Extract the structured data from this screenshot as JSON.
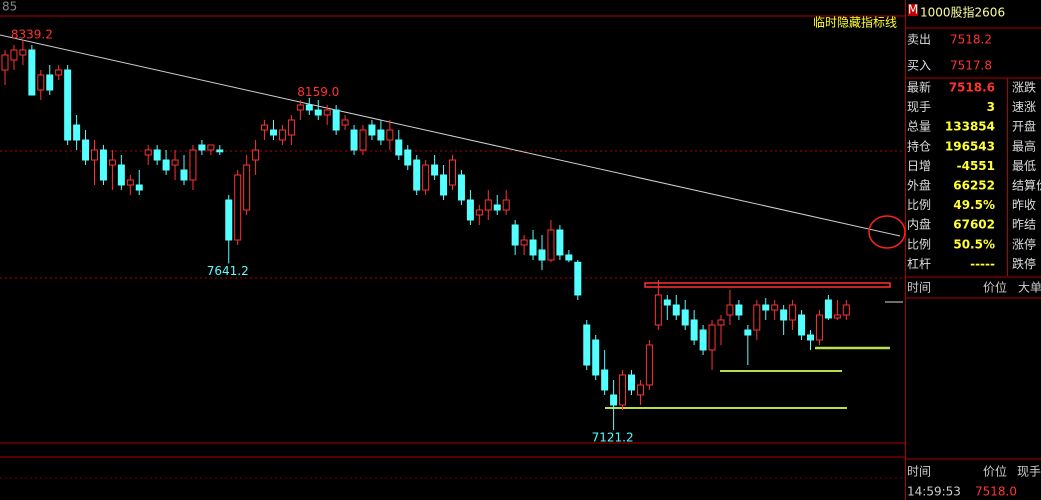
{
  "chart_data": {
    "type": "candlestick",
    "corner_label": "85",
    "note": "临时隐藏指标线",
    "annotations": [
      "8339.2",
      "8159.0",
      "7641.2",
      "7121.2"
    ],
    "up_color": "#ff3232",
    "down_color": "#54ffff",
    "candles": [
      [
        8245.5,
        8308,
        8198.7,
        8292.4
      ],
      [
        8276.7,
        8323.6,
        8245.5,
        8308
      ],
      [
        8292.4,
        8339.2,
        8261.1,
        8308
      ],
      [
        8308,
        8323.6,
        8167.4,
        8167.4
      ],
      [
        8183.1,
        8245.5,
        8151.8,
        8229.9
      ],
      [
        8229.9,
        8261.1,
        8167.4,
        8183.1
      ],
      [
        8229.9,
        8261.1,
        8214.3,
        8245.5
      ],
      [
        8245.5,
        8261.1,
        8011.3,
        8026.9
      ],
      [
        8073.7,
        8105,
        7995.7,
        8026.9
      ],
      [
        8026.9,
        8058.1,
        7948.8,
        7964.4
      ],
      [
        7964.4,
        8026.9,
        7886.4,
        7995.7
      ],
      [
        7995.7,
        8011.3,
        7886.4,
        7902
      ],
      [
        7948.8,
        7995.7,
        7870.7,
        7964.4
      ],
      [
        7948.8,
        7980.1,
        7870.7,
        7886.4
      ],
      [
        7886.4,
        7917.6,
        7855.1,
        7902
      ],
      [
        7886.4,
        7933.2,
        7855.1,
        7870.7
      ],
      [
        7980.1,
        8011.3,
        7948.8,
        7995.7
      ],
      [
        7995.7,
        8011.3,
        7948.8,
        7964.4
      ],
      [
        7964.4,
        7995.7,
        7917.6,
        7933.2
      ],
      [
        7948.8,
        7995.7,
        7902,
        7964.4
      ],
      [
        7933.2,
        7980.1,
        7886.4,
        7902
      ],
      [
        7902,
        8011.3,
        7870.7,
        7995.7
      ],
      [
        8011.3,
        8026.9,
        7980.1,
        7995.7
      ],
      [
        7995.7,
        8011.3,
        7980.1,
        8011.3
      ],
      [
        7995.7,
        8011.3,
        7980.1,
        7990.0
      ],
      [
        7839.5,
        7855.1,
        7641.2,
        7714.6
      ],
      [
        7714.6,
        7933.2,
        7699,
        7917.6
      ],
      [
        7808.3,
        7980.1,
        7792.7,
        7948.8
      ],
      [
        7964.4,
        8026.9,
        7917.6,
        7995.7
      ],
      [
        8058.1,
        8089.4,
        8026.9,
        8073.7
      ],
      [
        8058.1,
        8089.4,
        8026.9,
        8042.5
      ],
      [
        8026.9,
        8073.7,
        8011.3,
        8058.1
      ],
      [
        8042.5,
        8105,
        8011.3,
        8089.4
      ],
      [
        8120.6,
        8151.8,
        8089.4,
        8136.2
      ],
      [
        8136.2,
        8159.0,
        8105,
        8120.6
      ],
      [
        8120.6,
        8151.8,
        8089.4,
        8105
      ],
      [
        8105,
        8136.2,
        8073.7,
        8120.6
      ],
      [
        8120.6,
        8136.2,
        8042.5,
        8058.1
      ],
      [
        8073.7,
        8105,
        8058.1,
        8089.4
      ],
      [
        8058.1,
        8073.7,
        7980.1,
        7995.7
      ],
      [
        7995.7,
        8073.7,
        7980.1,
        8058.1
      ],
      [
        8073.7,
        8089.4,
        8026.9,
        8042.5
      ],
      [
        8058.1,
        8089.4,
        8011.3,
        8026.9
      ],
      [
        8026.9,
        8089.4,
        7995.7,
        8058.1
      ],
      [
        8026.9,
        8058.1,
        7964.4,
        7980.1
      ],
      [
        7995.7,
        8011.3,
        7933.2,
        7948.8
      ],
      [
        7964.4,
        7980.1,
        7855.1,
        7870.7
      ],
      [
        7870.7,
        7964.4,
        7855.1,
        7948.8
      ],
      [
        7948.8,
        7980.1,
        7902,
        7917.6
      ],
      [
        7917.6,
        7948.8,
        7839.5,
        7855.1
      ],
      [
        7886.4,
        7980.1,
        7870.7,
        7964.4
      ],
      [
        7917.6,
        7933.2,
        7823.9,
        7839.5
      ],
      [
        7839.5,
        7870.7,
        7761.5,
        7777.1
      ],
      [
        7792.7,
        7823.9,
        7761.5,
        7808.3
      ],
      [
        7808.3,
        7870.7,
        7777.1,
        7839.5
      ],
      [
        7823.9,
        7855.1,
        7792.7,
        7808.3
      ],
      [
        7808.3,
        7870.7,
        7792.7,
        7839.5
      ],
      [
        7761.5,
        7777.1,
        7667.8,
        7699
      ],
      [
        7699,
        7730.2,
        7667.8,
        7714.6
      ],
      [
        7714.6,
        7745.8,
        7652.1,
        7667.8
      ],
      [
        7683.4,
        7730.2,
        7620.9,
        7652.1
      ],
      [
        7652.1,
        7777.1,
        7645.0,
        7745.8
      ],
      [
        7745.8,
        7761.5,
        7652.1,
        7667.8
      ],
      [
        7667.8,
        7683.4,
        7645.0,
        7652.1
      ],
      [
        7645.0,
        7652.1,
        7527.2,
        7542.9
      ],
      [
        7449.2,
        7464.8,
        7308.6,
        7324.2
      ],
      [
        7402.3,
        7417.9,
        7277.4,
        7293
      ],
      [
        7308.6,
        7371.1,
        7230.6,
        7246.2
      ],
      [
        7230.6,
        7277.4,
        7121.2,
        7199.3
      ],
      [
        7199.3,
        7308.6,
        7183.7,
        7293
      ],
      [
        7293,
        7308.6,
        7230.6,
        7246.2
      ],
      [
        7230.6,
        7277.4,
        7199.3,
        7261.8
      ],
      [
        7261.8,
        7402.3,
        7246.2,
        7386.7
      ],
      [
        7449.2,
        7589.7,
        7433.5,
        7542.9
      ],
      [
        7527.2,
        7542.9,
        7464.8,
        7511.6
      ],
      [
        7511.6,
        7542.9,
        7464.8,
        7480.4
      ],
      [
        7496,
        7527.2,
        7433.5,
        7449.2
      ],
      [
        7464.8,
        7496,
        7386.7,
        7402.3
      ],
      [
        7433.5,
        7449.2,
        7355.5,
        7371.1
      ],
      [
        7371.1,
        7464.8,
        7308.6,
        7449.2
      ],
      [
        7449.2,
        7480.4,
        7386.7,
        7464.8
      ],
      [
        7480.4,
        7558.5,
        7449.2,
        7511.6
      ],
      [
        7511.6,
        7527.2,
        7464.8,
        7480.4
      ],
      [
        7433.5,
        7449.2,
        7324.2,
        7417.9
      ],
      [
        7433.5,
        7527.2,
        7402.3,
        7511.6
      ],
      [
        7511.6,
        7533.5,
        7464.8,
        7496
      ],
      [
        7496,
        7527.2,
        7464.8,
        7511.6
      ],
      [
        7496,
        7511.6,
        7417.9,
        7464.8
      ],
      [
        7464.8,
        7527.2,
        7433.5,
        7511.6
      ],
      [
        7480.4,
        7496,
        7402.3,
        7417.9
      ],
      [
        7417.9,
        7433.5,
        7371.1,
        7402.3
      ],
      [
        7402.3,
        7496,
        7386.7,
        7480.4
      ],
      [
        7527.2,
        7542.9,
        7464.8,
        7471
      ],
      [
        7471,
        7527.2,
        7464.8,
        7480.4
      ],
      [
        7480.4,
        7527.2,
        7464.8,
        7511.6
      ]
    ]
  },
  "quote": {
    "badge": "M",
    "title": "1000股指2606",
    "sell": [
      "卖出",
      "7518.2"
    ],
    "buy": [
      "买入",
      "7517.8"
    ],
    "rows": [
      [
        "最新",
        "7518.6",
        "涨跌"
      ],
      [
        "现手",
        "3",
        "速涨"
      ],
      [
        "总量",
        "133854",
        "开盘"
      ],
      [
        "持仓",
        "196543",
        "最高"
      ],
      [
        "日增",
        "-4551",
        "最低"
      ],
      [
        "外盘",
        "66252",
        "结算价"
      ],
      [
        "比例",
        "49.5%",
        "昨收"
      ],
      [
        "内盘",
        "67602",
        "昨结"
      ],
      [
        "比例",
        "50.5%",
        "涨停"
      ],
      [
        "杠杆",
        "-----",
        "跌停"
      ]
    ],
    "detail_header": [
      "时间",
      "价位",
      "大单"
    ],
    "tick_header": [
      "时间",
      "价位",
      "现手"
    ],
    "tick_row": [
      "14:59:53",
      "7518.0"
    ]
  }
}
